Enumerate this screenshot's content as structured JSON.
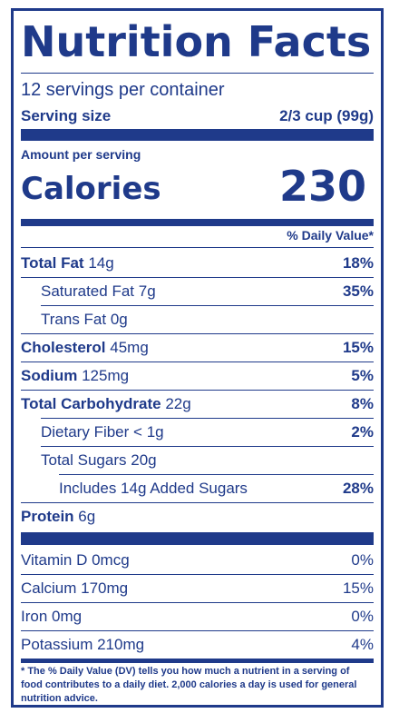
{
  "title": "Nutrition Facts",
  "servings": "12 servings per container",
  "serving_size": {
    "label": "Serving size",
    "value": "2/3 cup (99g)"
  },
  "amount_per_serving": "Amount per serving",
  "calories": {
    "label": "Calories",
    "value": "230"
  },
  "daily_value_header": "% Daily Value*",
  "nutrients": [
    {
      "label": "Total Fat",
      "amount": "14g",
      "dv": "18%"
    },
    {
      "label": "Saturated Fat",
      "amount": "7g",
      "dv": "35%"
    },
    {
      "label": "Trans Fat",
      "amount": "0g",
      "dv": ""
    },
    {
      "label": "Cholesterol",
      "amount": "45mg",
      "dv": "15%"
    },
    {
      "label": "Sodium",
      "amount": "125mg",
      "dv": "5%"
    },
    {
      "label": "Total Carbohydrate",
      "amount": "22g",
      "dv": "8%"
    },
    {
      "label": "Dietary Fiber",
      "amount": "< 1g",
      "dv": "2%"
    },
    {
      "label": "Total Sugars",
      "amount": "20g",
      "dv": ""
    },
    {
      "label": "Includes 14g Added Sugars",
      "amount": "",
      "dv": "28%"
    },
    {
      "label": "Protein",
      "amount": "6g",
      "dv": ""
    }
  ],
  "vitamins": [
    {
      "label": "Vitamin D 0mcg",
      "dv": "0%"
    },
    {
      "label": "Calcium 170mg",
      "dv": "15%"
    },
    {
      "label": "Iron 0mg",
      "dv": "0%"
    },
    {
      "label": "Potassium 210mg",
      "dv": "4%"
    }
  ],
  "footnote": "* The % Daily Value (DV) tells you how much a nutrient in a serving of food contributes to a daily diet. 2,000 calories a day is used for general nutrition advice.",
  "colors": {
    "ink": "#1f3a8a",
    "background": "#ffffff"
  }
}
